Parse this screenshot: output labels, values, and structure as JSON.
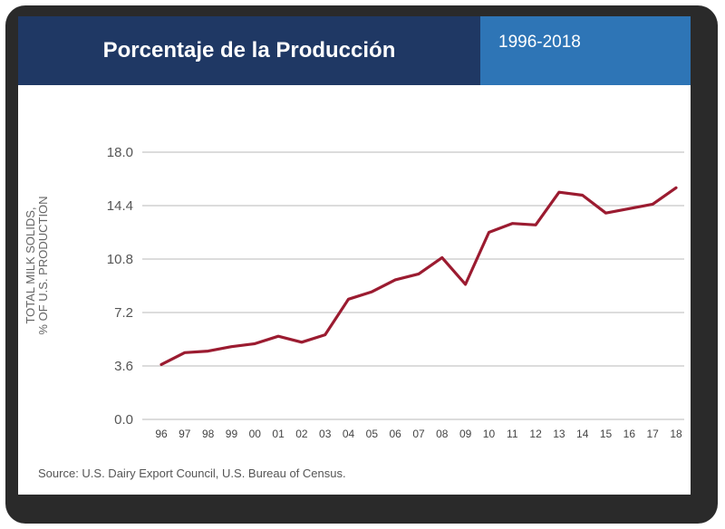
{
  "header": {
    "title": "Porcentaje de la Producción",
    "years": "1996-2018"
  },
  "chart_data": {
    "type": "line",
    "title": "Porcentaje de la Producción",
    "subtitle": "1996-2018",
    "ylabel": [
      "TOTAL MILK SOLIDS,",
      "% OF U.S. PRODUCTION"
    ],
    "xlabel": "",
    "ylim": [
      0,
      18
    ],
    "yticks": [
      "0.0",
      "3.6",
      "7.2",
      "10.8",
      "14.4",
      "18.0"
    ],
    "categories": [
      "96",
      "97",
      "98",
      "99",
      "00",
      "01",
      "02",
      "03",
      "04",
      "05",
      "06",
      "07",
      "08",
      "09",
      "10",
      "11",
      "12",
      "13",
      "14",
      "15",
      "16",
      "17",
      "18"
    ],
    "series": [
      {
        "name": "Total milk solids, % of U.S. production",
        "color": "#9b1b30",
        "values": [
          3.7,
          4.5,
          4.6,
          4.9,
          5.1,
          5.6,
          5.2,
          5.7,
          8.1,
          8.6,
          9.4,
          9.8,
          10.9,
          9.1,
          12.6,
          13.2,
          13.1,
          15.3,
          15.1,
          13.9,
          14.2,
          14.5,
          15.6
        ]
      }
    ],
    "grid": true,
    "legend": "none"
  },
  "source": "Source: U.S. Dairy Export Council, U.S. Bureau of Census."
}
